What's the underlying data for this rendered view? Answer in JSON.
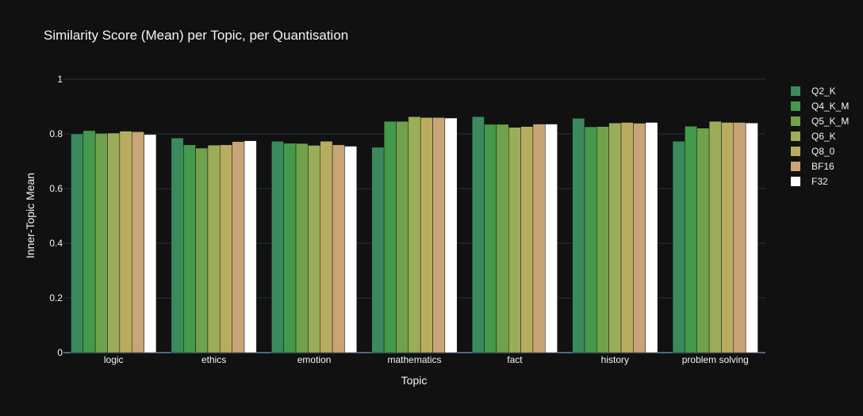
{
  "chart_data": {
    "type": "bar",
    "title": "Similarity Score (Mean) per Topic, per Quantisation",
    "xlabel": "Topic",
    "ylabel": "Inner-Topic Mean",
    "ylim": [
      0,
      1
    ],
    "yticks": [
      0,
      0.2,
      0.4,
      0.6,
      0.8,
      1
    ],
    "ytick_labels": [
      "0",
      "0.2",
      "0.4",
      "0.6",
      "0.8",
      "1"
    ],
    "grid": true,
    "legend_position": "right",
    "categories": [
      "logic",
      "ethics",
      "emotion",
      "mathematics",
      "fact",
      "history",
      "problem solving"
    ],
    "series": [
      {
        "name": "Q2_K",
        "color": "#3a8a5e",
        "values": [
          0.8,
          0.785,
          0.773,
          0.751,
          0.863,
          0.857,
          0.773
        ]
      },
      {
        "name": "Q4_K_M",
        "color": "#44994a",
        "values": [
          0.812,
          0.76,
          0.766,
          0.846,
          0.835,
          0.826,
          0.828
        ]
      },
      {
        "name": "Q5_K_M",
        "color": "#6fa24b",
        "values": [
          0.802,
          0.748,
          0.765,
          0.846,
          0.835,
          0.827,
          0.821
        ]
      },
      {
        "name": "Q6_K",
        "color": "#9cad5a",
        "values": [
          0.803,
          0.759,
          0.758,
          0.863,
          0.824,
          0.84,
          0.846
        ]
      },
      {
        "name": "Q8_0",
        "color": "#b8ad5e",
        "values": [
          0.81,
          0.76,
          0.773,
          0.86,
          0.827,
          0.842,
          0.842
        ]
      },
      {
        "name": "BF16",
        "color": "#c8a476",
        "values": [
          0.808,
          0.772,
          0.76,
          0.86,
          0.836,
          0.839,
          0.842
        ]
      },
      {
        "name": "F32",
        "color": "#ffffff",
        "values": [
          0.798,
          0.775,
          0.755,
          0.858,
          0.836,
          0.842,
          0.84
        ]
      }
    ]
  }
}
